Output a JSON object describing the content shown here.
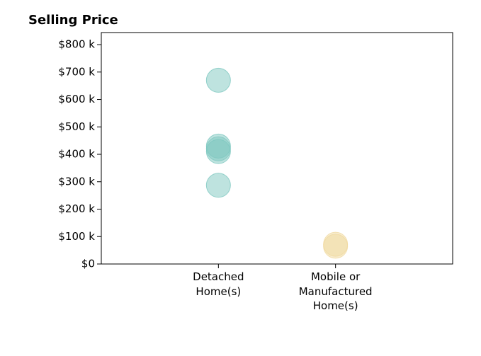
{
  "chart_data": {
    "type": "scatter",
    "title": "Selling Price",
    "categories": [
      "Detached Home(s)",
      "Mobile or Manufactured Home(s)"
    ],
    "series": [
      {
        "color": "#7ec8c0",
        "x": [
          "Detached Home(s)",
          "Detached Home(s)",
          "Detached Home(s)",
          "Detached Home(s)",
          "Detached Home(s)"
        ],
        "values": [
          670000,
          430000,
          420000,
          410000,
          287000
        ]
      },
      {
        "color": "#f0d9a0",
        "x": [
          "Mobile or Manufactured Home(s)",
          "Mobile or Manufactured Home(s)"
        ],
        "values": [
          72000,
          65000
        ]
      }
    ],
    "ylim": [
      0,
      844000
    ],
    "yticks": [
      {
        "value": 0,
        "label": "$0"
      },
      {
        "value": 100000,
        "label": "$100 k"
      },
      {
        "value": 200000,
        "label": "$200 k"
      },
      {
        "value": 300000,
        "label": "$300 k"
      },
      {
        "value": 400000,
        "label": "$400 k"
      },
      {
        "value": 500000,
        "label": "$500 k"
      },
      {
        "value": 600000,
        "label": "$600 k"
      },
      {
        "value": 700000,
        "label": "$700 k"
      },
      {
        "value": 800000,
        "label": "$800 k"
      }
    ],
    "grid": false
  }
}
